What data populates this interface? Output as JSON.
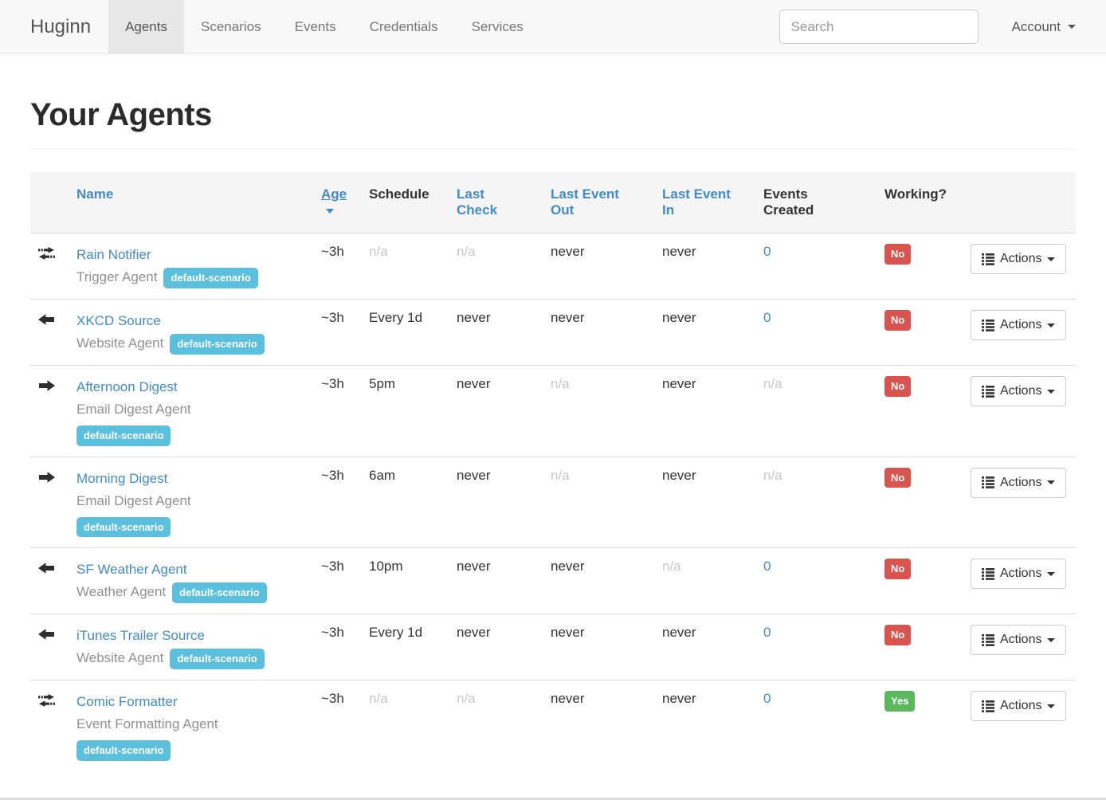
{
  "navbar": {
    "brand": "Huginn",
    "items": [
      {
        "label": "Agents",
        "active": true
      },
      {
        "label": "Scenarios",
        "active": false
      },
      {
        "label": "Events",
        "active": false
      },
      {
        "label": "Credentials",
        "active": false
      },
      {
        "label": "Services",
        "active": false
      }
    ],
    "search": {
      "placeholder": "Search"
    },
    "account": {
      "label": "Account"
    }
  },
  "page": {
    "title": "Your Agents"
  },
  "table": {
    "headers": [
      {
        "key": "name",
        "label": "Name"
      },
      {
        "key": "age",
        "label": "Age",
        "sorted_desc": true
      },
      {
        "key": "schedule",
        "label": "Schedule"
      },
      {
        "key": "last_check",
        "label": "Last Check"
      },
      {
        "key": "last_event_out",
        "label": "Last Event Out"
      },
      {
        "key": "last_event_in",
        "label": "Last Event In"
      },
      {
        "key": "events_created",
        "label": "Events Created"
      },
      {
        "key": "working",
        "label": "Working?"
      }
    ],
    "actions_label": "Actions",
    "colors": {
      "link_blue": "#428bca",
      "badge_info": "#5bc0de",
      "working_no": "#d9534f",
      "working_yes": "#5cb85c"
    },
    "rows": [
      {
        "icon": "exchange-icon",
        "name": "Rain Notifier",
        "type": "Trigger Agent",
        "badge": "default-scenario",
        "badge_layout": "inline",
        "age": "~3h",
        "schedule": "n/a",
        "last_check": "n/a",
        "last_event_out": "never",
        "last_event_in": "never",
        "events_created": "0",
        "events_link": true,
        "working": "No",
        "muted": [
          "schedule",
          "last_check"
        ]
      },
      {
        "icon": "arrow-left-icon",
        "name": "XKCD Source",
        "type": "Website Agent",
        "badge": "default-scenario",
        "badge_layout": "inline",
        "age": "~3h",
        "schedule": "Every 1d",
        "last_check": "never",
        "last_event_out": "never",
        "last_event_in": "never",
        "events_created": "0",
        "events_link": true,
        "working": "No",
        "muted": []
      },
      {
        "icon": "arrow-right-icon",
        "name": "Afternoon Digest",
        "type": "Email Digest Agent",
        "badge": "default-scenario",
        "badge_layout": "block",
        "age": "~3h",
        "schedule": "5pm",
        "last_check": "never",
        "last_event_out": "n/a",
        "last_event_in": "never",
        "events_created": "n/a",
        "events_link": false,
        "working": "No",
        "muted": [
          "last_event_out",
          "events_created"
        ]
      },
      {
        "icon": "arrow-right-icon",
        "name": "Morning Digest",
        "type": "Email Digest Agent",
        "badge": "default-scenario",
        "badge_layout": "block",
        "age": "~3h",
        "schedule": "6am",
        "last_check": "never",
        "last_event_out": "n/a",
        "last_event_in": "never",
        "events_created": "n/a",
        "events_link": false,
        "working": "No",
        "muted": [
          "last_event_out",
          "events_created"
        ]
      },
      {
        "icon": "arrow-left-icon",
        "name": "SF Weather Agent",
        "type": "Weather Agent",
        "badge": "default-scenario",
        "badge_layout": "inline",
        "age": "~3h",
        "schedule": "10pm",
        "last_check": "never",
        "last_event_out": "never",
        "last_event_in": "n/a",
        "events_created": "0",
        "events_link": true,
        "working": "No",
        "muted": [
          "last_event_in"
        ]
      },
      {
        "icon": "arrow-left-icon",
        "name": "iTunes Trailer Source",
        "type": "Website Agent",
        "badge": "default-scenario",
        "badge_layout": "inline",
        "age": "~3h",
        "schedule": "Every 1d",
        "last_check": "never",
        "last_event_out": "never",
        "last_event_in": "never",
        "events_created": "0",
        "events_link": true,
        "working": "No",
        "muted": []
      },
      {
        "icon": "exchange-icon",
        "name": "Comic Formatter",
        "type": "Event Formatting Agent",
        "badge": "default-scenario",
        "badge_layout": "block",
        "age": "~3h",
        "schedule": "n/a",
        "last_check": "n/a",
        "last_event_out": "never",
        "last_event_in": "never",
        "events_created": "0",
        "events_link": true,
        "working": "Yes",
        "muted": [
          "schedule",
          "last_check"
        ]
      }
    ]
  }
}
